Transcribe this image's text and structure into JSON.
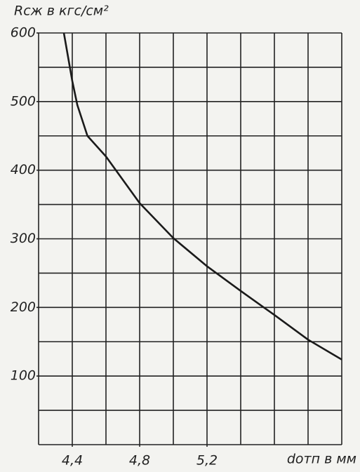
{
  "chart_data": {
    "type": "line",
    "y_label": "Rсж в кгс/см²",
    "x_label": "dотп в мм",
    "xlim": [
      4.2,
      6.0
    ],
    "ylim": [
      0,
      600
    ],
    "xticks": [
      {
        "value": 4.4,
        "label": "4,4"
      },
      {
        "value": 4.8,
        "label": "4,8"
      },
      {
        "value": 5.2,
        "label": "5,2"
      }
    ],
    "yticks": [
      100,
      200,
      300,
      400,
      500,
      600
    ],
    "xgrid": [
      4.2,
      4.4,
      4.6,
      4.8,
      5.0,
      5.2,
      5.4,
      5.6,
      5.8,
      6.0
    ],
    "ygrid": [
      0,
      50,
      100,
      150,
      200,
      250,
      300,
      350,
      400,
      450,
      500,
      550,
      600
    ],
    "grid": true,
    "series": [
      {
        "color": "#1a1a1a",
        "x": [
          4.35,
          4.4,
          4.43,
          4.49,
          4.6,
          4.8,
          5.0,
          5.2,
          5.4,
          5.6,
          5.8,
          6.0
        ],
        "values": [
          600,
          530,
          495,
          450,
          420,
          352,
          301,
          260,
          224,
          189,
          153,
          124
        ]
      }
    ]
  }
}
